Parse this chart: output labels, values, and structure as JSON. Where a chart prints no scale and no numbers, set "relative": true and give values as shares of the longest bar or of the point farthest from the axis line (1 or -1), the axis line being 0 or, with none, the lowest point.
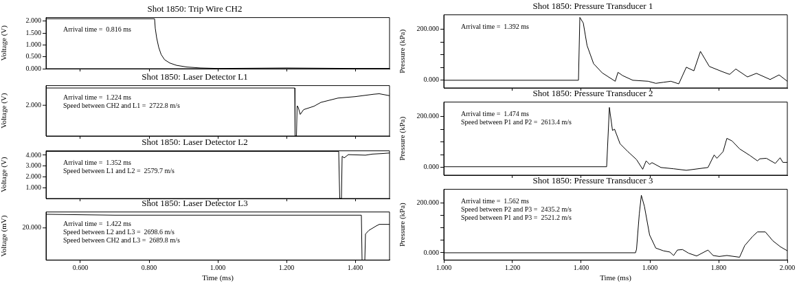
{
  "chart_data": [
    {
      "type": "line",
      "title": "Shot 1850: Trip Wire CH2",
      "ylabel": "Voltage (V)",
      "annotations": [
        "Arrival time =  0.816 ms"
      ],
      "xlim": [
        0.5,
        1.5
      ],
      "xticks": [
        0.6,
        0.8,
        1.0,
        1.2,
        1.4
      ],
      "ylim": [
        0,
        2.15
      ],
      "yticks": [
        {
          "value": 0,
          "label": "0.000"
        },
        {
          "value": 0.5,
          "label": "0.500"
        },
        {
          "value": 1,
          "label": "1.000"
        },
        {
          "value": 1.5,
          "label": "1.500"
        },
        {
          "value": 2,
          "label": "2.000"
        }
      ],
      "tick_labels": "y",
      "color": "#000000",
      "x": [
        0.5,
        0.816,
        0.818,
        0.822,
        0.828,
        0.835,
        0.845,
        0.86,
        0.88,
        0.91,
        0.95,
        1.0,
        1.1,
        1.2,
        1.3,
        1.4,
        1.5
      ],
      "values": [
        2.1,
        2.1,
        1.7,
        1.3,
        0.9,
        0.6,
        0.38,
        0.24,
        0.14,
        0.07,
        0.03,
        0.01,
        0.02,
        0.03,
        0.02,
        0.01,
        0.01
      ]
    },
    {
      "type": "line",
      "title": "Shot 1850: Laser Detector L1",
      "ylabel": "Voltage (V)",
      "annotations": [
        "Arrival time =  1.224 ms",
        "Speed between CH2 and L1 =  2722.8 m/s",
        "2.000"
      ],
      "relative": true,
      "xlim": [
        0.5,
        1.5
      ],
      "xticks": [
        0.6,
        0.8,
        1.0,
        1.2,
        1.4
      ],
      "tick_labels": "y",
      "color": "#000000",
      "x": [
        0.5,
        1.224,
        1.225,
        1.229,
        1.231,
        1.234,
        1.24,
        1.25,
        1.28,
        1.3,
        1.35,
        1.4,
        1.454,
        1.47,
        1.5
      ],
      "values": [
        1.0,
        1.0,
        0.0,
        0.0,
        0.63,
        0.6,
        0.45,
        0.55,
        0.62,
        0.7,
        0.79,
        0.82,
        0.87,
        0.88,
        0.84
      ]
    },
    {
      "type": "line",
      "title": "Shot 1850: Laser Detector L2",
      "ylabel": "Voltage (V)",
      "annotations": [
        "Arrival time =  1.352 ms",
        "Speed between L1 and L2 =  2579.7 m/s"
      ],
      "xlim": [
        0.5,
        1.5
      ],
      "xticks": [
        0.6,
        0.8,
        1.0,
        1.2,
        1.4
      ],
      "ylim": [
        0,
        4.4
      ],
      "yticks": [
        {
          "value": 1,
          "label": "1.000"
        },
        {
          "value": 2,
          "label": "2.000"
        },
        {
          "value": 3,
          "label": "3.000"
        },
        {
          "value": 4,
          "label": "4.000"
        }
      ],
      "tick_labels": "y",
      "color": "#000000",
      "x": [
        0.5,
        1.352,
        1.355,
        1.36,
        1.362,
        1.368,
        1.38,
        1.43,
        1.45,
        1.48,
        1.5
      ],
      "values": [
        4.35,
        4.35,
        0,
        0,
        3.9,
        3.75,
        4.05,
        4.0,
        4.1,
        4.15,
        4.2
      ]
    },
    {
      "type": "line",
      "title": "Shot 1850: Laser Detector L3",
      "ylabel": "Voltage (mV)",
      "xlabel": "Time (ms)",
      "annotations": [
        "Arrival time =  1.422 ms",
        "Speed between L2 and L3 =  2698.6 m/s",
        "Speed between CH2 and L3 =  2689.8 m/s",
        "20.000"
      ],
      "relative": true,
      "xlim": [
        0.5,
        1.5
      ],
      "xticks": [
        {
          "value": 0.6,
          "label": "0.600"
        },
        {
          "value": 0.8,
          "label": "0.800"
        },
        {
          "value": 1.0,
          "label": "1.000"
        },
        {
          "value": 1.2,
          "label": "1.200"
        },
        {
          "value": 1.4,
          "label": "1.400"
        }
      ],
      "color": "#000000",
      "x": [
        0.5,
        0.6,
        0.7,
        1.0,
        1.418,
        1.42,
        1.428,
        1.43,
        1.44,
        1.46,
        1.47,
        1.5
      ],
      "values": [
        1.0,
        0.99,
        0.98,
        0.98,
        0.98,
        0.0,
        0.0,
        0.57,
        0.65,
        0.74,
        0.78,
        0.78
      ]
    },
    {
      "type": "line",
      "title": "Shot 1850: Pressure Transducer 1",
      "ylabel": "Pressure (kPa)",
      "annotations": [
        "Arrival time =  1.392 ms"
      ],
      "xlim": [
        1,
        2
      ],
      "xticks": [
        1.2,
        1.4,
        1.6,
        1.8
      ],
      "ylim": [
        -30,
        256
      ],
      "yticks": [
        {
          "value": 0,
          "label": "0.000"
        },
        {
          "value": 50,
          "label": null
        },
        {
          "value": 100,
          "label": null
        },
        {
          "value": 150,
          "label": null
        },
        {
          "value": 200,
          "label": "200.000"
        }
      ],
      "tick_labels": "y",
      "color": "#000000",
      "x": [
        1.0,
        1.392,
        1.396,
        1.406,
        1.417,
        1.436,
        1.461,
        1.499,
        1.507,
        1.521,
        1.55,
        1.595,
        1.617,
        1.639,
        1.661,
        1.684,
        1.706,
        1.728,
        1.747,
        1.773,
        1.81,
        1.832,
        1.85,
        1.884,
        1.91,
        1.95,
        1.976,
        2.0
      ],
      "values": [
        0,
        0,
        246,
        224,
        136,
        65,
        29,
        -4,
        31,
        18,
        0,
        -4,
        -12,
        -8,
        -4,
        -14,
        51,
        37,
        113,
        54,
        34,
        23,
        44,
        13,
        27,
        3,
        21,
        -4
      ]
    },
    {
      "type": "line",
      "title": "Shot 1850: Pressure Transducer 2",
      "ylabel": "Pressure (kPa)",
      "annotations": [
        "Arrival time =  1.474 ms",
        "Speed between P1 and P2 =  2613.4 m/s"
      ],
      "xlim": [
        1,
        2
      ],
      "xticks": [
        1.2,
        1.4,
        1.6,
        1.8
      ],
      "ylim": [
        -30,
        256
      ],
      "yticks": [
        {
          "value": 0,
          "label": "0.000"
        },
        {
          "value": 50,
          "label": null
        },
        {
          "value": 100,
          "label": null
        },
        {
          "value": 150,
          "label": null
        },
        {
          "value": 200,
          "label": "200.000"
        }
      ],
      "tick_labels": "y",
      "color": "#000000",
      "x": [
        1.0,
        1.474,
        1.482,
        1.491,
        1.497,
        1.513,
        1.536,
        1.561,
        1.579,
        1.589,
        1.599,
        1.606,
        1.632,
        1.669,
        1.706,
        1.769,
        1.787,
        1.795,
        1.813,
        1.824,
        1.839,
        1.861,
        1.891,
        1.913,
        1.92,
        1.939,
        1.965,
        1.979,
        1.987,
        2.0
      ],
      "values": [
        3,
        3,
        235,
        145,
        150,
        93,
        62,
        31,
        -7,
        26,
        12,
        19,
        0,
        -5,
        -11,
        0,
        49,
        36,
        62,
        114,
        104,
        73,
        47,
        26,
        34,
        36,
        16,
        38,
        20,
        20
      ]
    },
    {
      "type": "line",
      "title": "Shot 1850: Pressure Transducer 3",
      "ylabel": "Pressure (kPa)",
      "xlabel": "Time (ms)",
      "annotations": [
        "Arrival time =  1.562 ms",
        "Speed between P2 and P3 =  2435.2 m/s",
        "Speed between P1 and P3 =  2521.2 m/s"
      ],
      "xlim": [
        1,
        2
      ],
      "xticks": [
        {
          "value": 1.0,
          "label": "1.000"
        },
        {
          "value": 1.2,
          "label": "1.200"
        },
        {
          "value": 1.4,
          "label": "1.400"
        },
        {
          "value": 1.6,
          "label": "1.600"
        },
        {
          "value": 1.8,
          "label": "1.800"
        },
        {
          "value": 2.0,
          "label": "2.000"
        }
      ],
      "ylim": [
        -30,
        256
      ],
      "yticks": [
        {
          "value": 0,
          "label": "0.000"
        },
        {
          "value": 50,
          "label": null
        },
        {
          "value": 100,
          "label": null
        },
        {
          "value": 150,
          "label": null
        },
        {
          "value": 200,
          "label": "200.000"
        }
      ],
      "color": "#000000",
      "x": [
        1.0,
        1.558,
        1.561,
        1.569,
        1.575,
        1.584,
        1.599,
        1.617,
        1.639,
        1.658,
        1.669,
        1.68,
        1.695,
        1.713,
        1.736,
        1.769,
        1.784,
        1.802,
        1.824,
        1.861,
        1.876,
        1.899,
        1.913,
        1.936,
        1.958,
        1.98,
        2.0
      ],
      "values": [
        0,
        0,
        14,
        156,
        232,
        187,
        72,
        19,
        8,
        3,
        -11,
        11,
        13,
        -2,
        -13,
        11,
        -11,
        -15,
        -11,
        -18,
        29,
        66,
        84,
        84,
        48,
        24,
        8
      ]
    }
  ]
}
